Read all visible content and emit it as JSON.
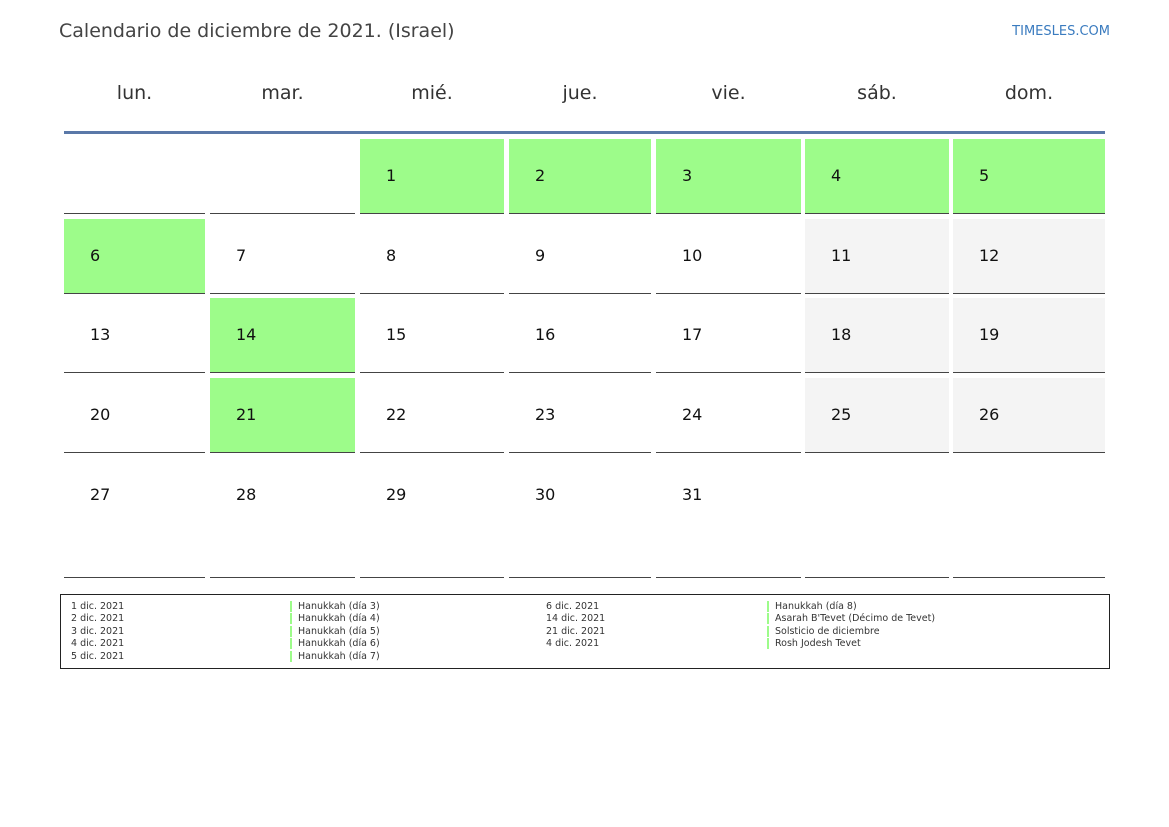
{
  "title": "Calendario de diciembre de 2021. (Israel)",
  "site": "TIMESLES.COM",
  "colors": {
    "holiday": "#9dfc8a",
    "weekend": "#f4f4f4",
    "header_rule": "#5a78a8",
    "link": "#3a7bbf"
  },
  "weekdays": [
    "lun.",
    "mar.",
    "mié.",
    "jue.",
    "vie.",
    "sáb.",
    "dom."
  ],
  "weeks": [
    [
      {
        "day": "",
        "type": "empty"
      },
      {
        "day": "",
        "type": "empty"
      },
      {
        "day": "1",
        "type": "holiday"
      },
      {
        "day": "2",
        "type": "holiday"
      },
      {
        "day": "3",
        "type": "holiday"
      },
      {
        "day": "4",
        "type": "holiday"
      },
      {
        "day": "5",
        "type": "holiday"
      }
    ],
    [
      {
        "day": "6",
        "type": "holiday"
      },
      {
        "day": "7",
        "type": "normal"
      },
      {
        "day": "8",
        "type": "normal"
      },
      {
        "day": "9",
        "type": "normal"
      },
      {
        "day": "10",
        "type": "normal"
      },
      {
        "day": "11",
        "type": "weekend"
      },
      {
        "day": "12",
        "type": "weekend"
      }
    ],
    [
      {
        "day": "13",
        "type": "normal"
      },
      {
        "day": "14",
        "type": "holiday"
      },
      {
        "day": "15",
        "type": "normal"
      },
      {
        "day": "16",
        "type": "normal"
      },
      {
        "day": "17",
        "type": "normal"
      },
      {
        "day": "18",
        "type": "weekend"
      },
      {
        "day": "19",
        "type": "weekend"
      }
    ],
    [
      {
        "day": "20",
        "type": "normal"
      },
      {
        "day": "21",
        "type": "holiday"
      },
      {
        "day": "22",
        "type": "normal"
      },
      {
        "day": "23",
        "type": "normal"
      },
      {
        "day": "24",
        "type": "normal"
      },
      {
        "day": "25",
        "type": "weekend"
      },
      {
        "day": "26",
        "type": "weekend"
      }
    ],
    [
      {
        "day": "27",
        "type": "normal"
      },
      {
        "day": "28",
        "type": "normal"
      },
      {
        "day": "29",
        "type": "normal"
      },
      {
        "day": "30",
        "type": "normal"
      },
      {
        "day": "31",
        "type": "normal"
      },
      {
        "day": "",
        "type": "empty"
      },
      {
        "day": "",
        "type": "empty"
      }
    ]
  ],
  "legend": {
    "left": [
      {
        "date": "1 dic. 2021",
        "name": "Hanukkah (día 3)"
      },
      {
        "date": "2 dic. 2021",
        "name": "Hanukkah (día 4)"
      },
      {
        "date": "3 dic. 2021",
        "name": "Hanukkah (día 5)"
      },
      {
        "date": "4 dic. 2021",
        "name": "Hanukkah (día 6)"
      },
      {
        "date": "5 dic. 2021",
        "name": "Hanukkah (día 7)"
      }
    ],
    "right": [
      {
        "date": "6 dic. 2021",
        "name": "Hanukkah (día 8)"
      },
      {
        "date": "14 dic. 2021",
        "name": "Asarah B'Tevet (Décimo de Tevet)"
      },
      {
        "date": "21 dic. 2021",
        "name": "Solsticio de diciembre"
      },
      {
        "date": "4 dic. 2021",
        "name": "Rosh Jodesh Tevet"
      }
    ]
  }
}
